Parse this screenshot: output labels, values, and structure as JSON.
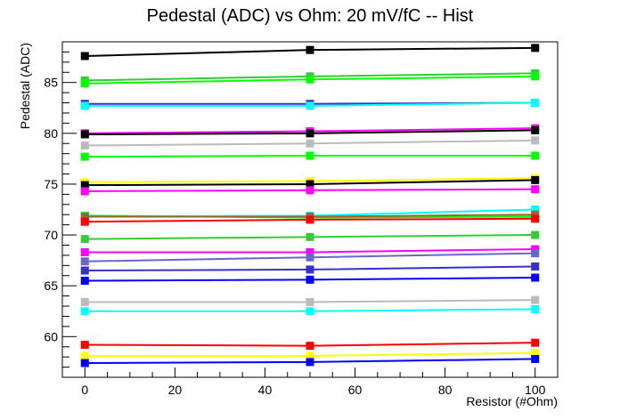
{
  "chart_data": {
    "type": "line",
    "title": "Pedestal (ADC) vs Ohm: 20 mV/fC -- Hist",
    "xlabel": "Resistor (#Ohm)",
    "ylabel": "Pedestal (ADC)",
    "xlim": [
      -5,
      105
    ],
    "ylim": [
      56,
      89
    ],
    "x_ticks": [
      0,
      20,
      40,
      60,
      80,
      100
    ],
    "y_ticks": [
      60,
      65,
      70,
      75,
      80,
      85
    ],
    "grid": false,
    "legend": "none",
    "x": [
      0,
      50,
      100
    ],
    "series": [
      {
        "color": "#000000",
        "values": [
          87.6,
          88.2,
          88.4
        ]
      },
      {
        "color": "#33cc33",
        "values": [
          85.2,
          85.6,
          85.9
        ]
      },
      {
        "color": "#00ff00",
        "values": [
          84.9,
          85.3,
          85.6
        ]
      },
      {
        "color": "#3333cc",
        "values": [
          82.9,
          82.9,
          83.0
        ]
      },
      {
        "color": "#00ffff",
        "values": [
          82.7,
          82.7,
          83.0
        ]
      },
      {
        "color": "#ff00ff",
        "values": [
          80.0,
          80.2,
          80.5
        ]
      },
      {
        "color": "#000000",
        "values": [
          79.9,
          80.0,
          80.3
        ]
      },
      {
        "color": "#bbbbbb",
        "values": [
          78.8,
          79.0,
          79.3
        ]
      },
      {
        "color": "#00ff00",
        "values": [
          77.7,
          77.8,
          77.8
        ]
      },
      {
        "color": "#ffff00",
        "values": [
          75.2,
          75.3,
          75.6
        ]
      },
      {
        "color": "#000000",
        "values": [
          74.9,
          75.0,
          75.4
        ]
      },
      {
        "color": "#ff00ff",
        "values": [
          74.3,
          74.4,
          74.5
        ]
      },
      {
        "color": "#00ffff",
        "values": [
          71.8,
          71.9,
          72.5
        ]
      },
      {
        "color": "#00ff00",
        "values": [
          71.9,
          71.7,
          71.8
        ]
      },
      {
        "color": "#996633",
        "values": [
          71.8,
          71.8,
          72.0
        ]
      },
      {
        "color": "#ff0000",
        "values": [
          71.3,
          71.5,
          71.6
        ]
      },
      {
        "color": "#33cc33",
        "values": [
          69.6,
          69.8,
          70.0
        ]
      },
      {
        "color": "#ff00ff",
        "values": [
          68.3,
          68.3,
          68.6
        ]
      },
      {
        "color": "#6666cc",
        "values": [
          67.4,
          67.8,
          68.2
        ]
      },
      {
        "color": "#3333cc",
        "values": [
          66.5,
          66.6,
          66.9
        ]
      },
      {
        "color": "#0000ff",
        "values": [
          65.5,
          65.6,
          65.8
        ]
      },
      {
        "color": "#bbbbbb",
        "values": [
          63.4,
          63.4,
          63.6
        ]
      },
      {
        "color": "#00ffff",
        "values": [
          62.5,
          62.5,
          62.7
        ]
      },
      {
        "color": "#ff0000",
        "values": [
          59.2,
          59.1,
          59.4
        ]
      },
      {
        "color": "#ffff00",
        "values": [
          58.1,
          58.1,
          58.4
        ]
      },
      {
        "color": "#0000ff",
        "values": [
          57.4,
          57.5,
          57.8
        ]
      }
    ]
  }
}
